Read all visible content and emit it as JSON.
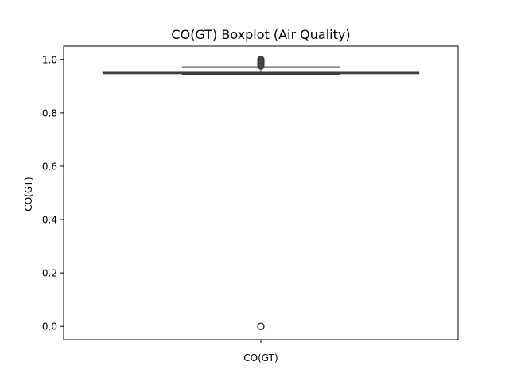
{
  "chart_data": {
    "type": "boxplot",
    "title": "CO(GT) Boxplot (Air Quality)",
    "xlabel": "",
    "ylabel": "CO(GT)",
    "categories": [
      "CO(GT)"
    ],
    "ylim": [
      -0.05,
      1.05
    ],
    "yticks": [
      0.0,
      0.2,
      0.4,
      0.6,
      0.8,
      1.0
    ],
    "ytick_labels": [
      "0.0",
      "0.2",
      "0.4",
      "0.6",
      "0.8",
      "1.0"
    ],
    "grid": false,
    "box": {
      "q1": 0.947,
      "median": 0.951,
      "q3": 0.954,
      "whisker_low": 0.945,
      "whisker_high": 0.972
    },
    "outliers": [
      0.0,
      0.0,
      0.0,
      0.0,
      0.975,
      0.978,
      0.982,
      0.985,
      0.988,
      0.991,
      0.994,
      0.997,
      1.0
    ],
    "colors": {
      "box_fill": "#3a6fa8",
      "box_edge": "#3f3f3f",
      "outlier": "#3f3f3f"
    }
  }
}
